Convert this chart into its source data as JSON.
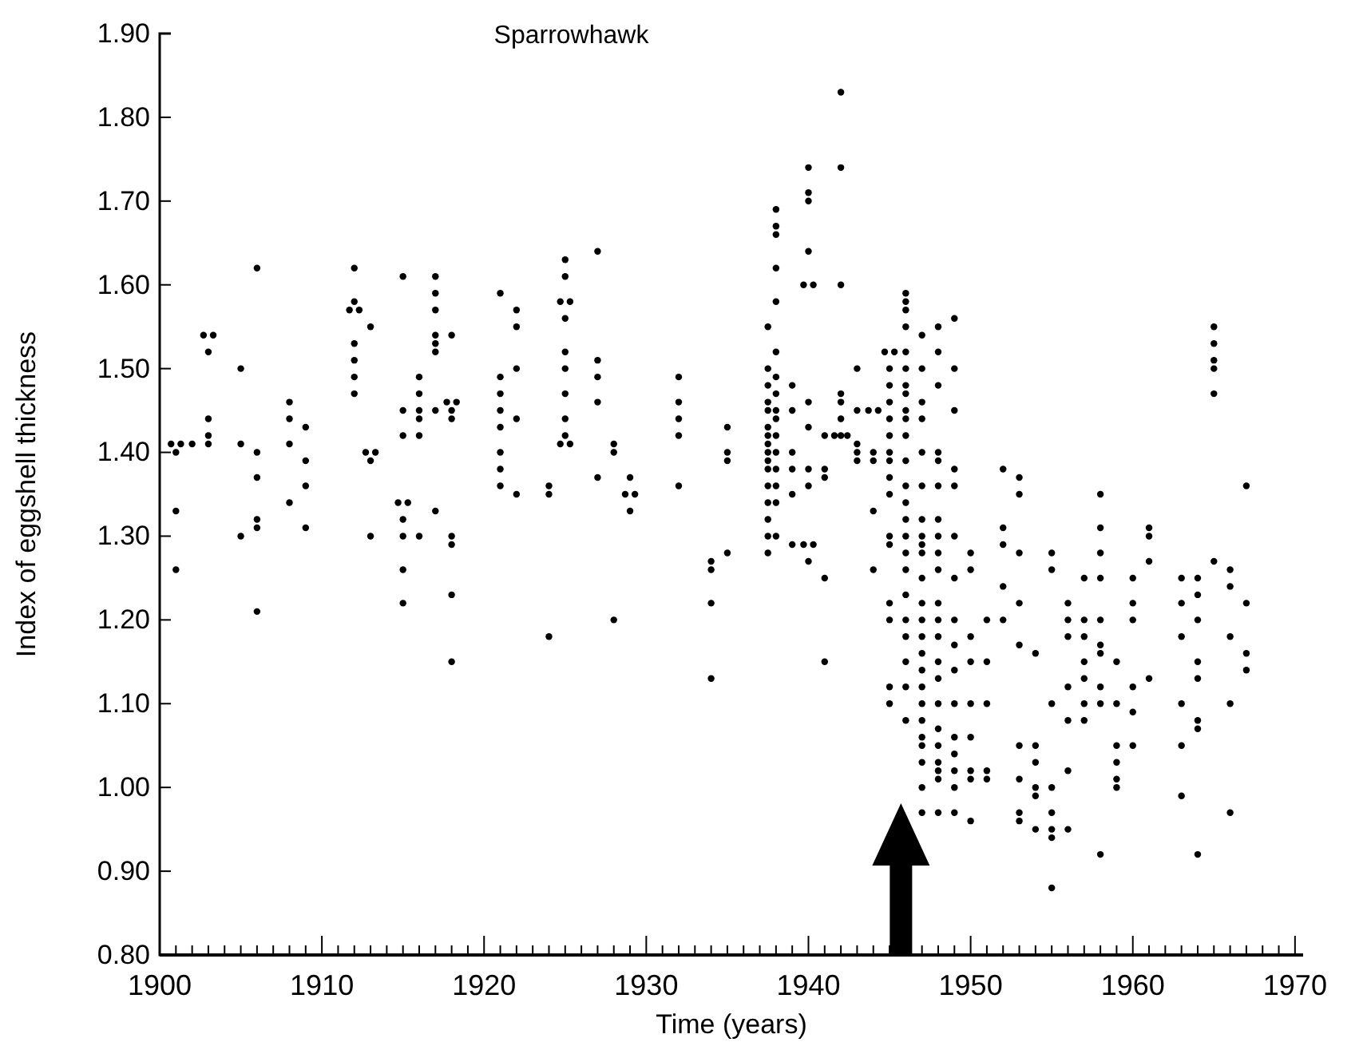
{
  "chart_data": {
    "type": "scatter",
    "title": "Sparrowhawk",
    "xlabel": "Time (years)",
    "ylabel": "Index of eggshell thickness",
    "xlim": [
      1900,
      1970.5
    ],
    "ylim": [
      0.8,
      1.9
    ],
    "xticks": [
      1900,
      {
        "value": 1901,
        "label": null
      },
      {
        "value": 1902,
        "label": null
      },
      {
        "value": 1903,
        "label": null
      },
      {
        "value": 1904,
        "label": null
      },
      {
        "value": 1905,
        "label": null
      },
      {
        "value": 1906,
        "label": null
      },
      {
        "value": 1907,
        "label": null
      },
      {
        "value": 1908,
        "label": null
      },
      {
        "value": 1909,
        "label": null
      },
      1910,
      {
        "value": 1911,
        "label": null
      },
      {
        "value": 1912,
        "label": null
      },
      {
        "value": 1913,
        "label": null
      },
      {
        "value": 1914,
        "label": null
      },
      {
        "value": 1915,
        "label": null
      },
      {
        "value": 1916,
        "label": null
      },
      {
        "value": 1917,
        "label": null
      },
      {
        "value": 1918,
        "label": null
      },
      {
        "value": 1919,
        "label": null
      },
      1920,
      {
        "value": 1921,
        "label": null
      },
      {
        "value": 1922,
        "label": null
      },
      {
        "value": 1923,
        "label": null
      },
      {
        "value": 1924,
        "label": null
      },
      {
        "value": 1925,
        "label": null
      },
      {
        "value": 1926,
        "label": null
      },
      {
        "value": 1927,
        "label": null
      },
      {
        "value": 1928,
        "label": null
      },
      {
        "value": 1929,
        "label": null
      },
      1930,
      {
        "value": 1931,
        "label": null
      },
      {
        "value": 1932,
        "label": null
      },
      {
        "value": 1933,
        "label": null
      },
      {
        "value": 1934,
        "label": null
      },
      {
        "value": 1935,
        "label": null
      },
      {
        "value": 1936,
        "label": null
      },
      {
        "value": 1937,
        "label": null
      },
      {
        "value": 1938,
        "label": null
      },
      {
        "value": 1939,
        "label": null
      },
      1940,
      {
        "value": 1941,
        "label": null
      },
      {
        "value": 1942,
        "label": null
      },
      {
        "value": 1943,
        "label": null
      },
      {
        "value": 1944,
        "label": null
      },
      {
        "value": 1945,
        "label": null
      },
      {
        "value": 1946,
        "label": null
      },
      {
        "value": 1947,
        "label": null
      },
      {
        "value": 1948,
        "label": null
      },
      {
        "value": 1949,
        "label": null
      },
      1950,
      {
        "value": 1951,
        "label": null
      },
      {
        "value": 1952,
        "label": null
      },
      {
        "value": 1953,
        "label": null
      },
      {
        "value": 1954,
        "label": null
      },
      {
        "value": 1955,
        "label": null
      },
      {
        "value": 1956,
        "label": null
      },
      {
        "value": 1957,
        "label": null
      },
      {
        "value": 1958,
        "label": null
      },
      {
        "value": 1959,
        "label": null
      },
      1960,
      {
        "value": 1961,
        "label": null
      },
      {
        "value": 1962,
        "label": null
      },
      {
        "value": 1963,
        "label": null
      },
      {
        "value": 1964,
        "label": null
      },
      {
        "value": 1965,
        "label": null
      },
      {
        "value": 1966,
        "label": null
      },
      {
        "value": 1967,
        "label": null
      },
      {
        "value": 1968,
        "label": null
      },
      {
        "value": 1969,
        "label": null
      },
      1970
    ],
    "yticks": [
      {
        "value": 0.8,
        "label": "0.80"
      },
      {
        "value": 0.9,
        "label": "0.90"
      },
      {
        "value": 1.0,
        "label": "1.00"
      },
      {
        "value": 1.1,
        "label": "1.10"
      },
      {
        "value": 1.2,
        "label": "1.20"
      },
      {
        "value": 1.3,
        "label": "1.30"
      },
      {
        "value": 1.4,
        "label": "1.40"
      },
      {
        "value": 1.5,
        "label": "1.50"
      },
      {
        "value": 1.6,
        "label": "1.60"
      },
      {
        "value": 1.7,
        "label": "1.70"
      },
      {
        "value": 1.8,
        "label": "1.80"
      },
      {
        "value": 1.9,
        "label": "1.90"
      }
    ],
    "marker": "circle",
    "grid": false,
    "series": [
      {
        "color": "#000000",
        "x": [
          1900.7,
          1901.3,
          1901,
          1901,
          1901
        ],
        "values": [
          1.41,
          1.41,
          1.33,
          1.26,
          1.4
        ]
      },
      {
        "color": "#000000",
        "x": [
          1902,
          1902.7,
          1903.3,
          1903,
          1903,
          1903,
          1903
        ],
        "values": [
          1.41,
          1.54,
          1.54,
          1.52,
          1.44,
          1.41,
          1.42
        ]
      },
      {
        "color": "#000000",
        "x": [
          1905,
          1905,
          1905
        ],
        "values": [
          1.5,
          1.41,
          1.3
        ]
      },
      {
        "color": "#000000",
        "x": [
          1906,
          1906,
          1906,
          1906,
          1906,
          1906
        ],
        "values": [
          1.62,
          1.4,
          1.37,
          1.32,
          1.31,
          1.21
        ]
      },
      {
        "color": "#000000",
        "x": [
          1908,
          1908,
          1908,
          1908
        ],
        "values": [
          1.46,
          1.44,
          1.41,
          1.34
        ]
      },
      {
        "color": "#000000",
        "x": [
          1909,
          1909,
          1909,
          1909
        ],
        "values": [
          1.43,
          1.39,
          1.36,
          1.31
        ]
      },
      {
        "color": "#000000",
        "x": [
          1911.7,
          1912.3,
          1912,
          1912,
          1912,
          1912,
          1912,
          1912
        ],
        "values": [
          1.57,
          1.57,
          1.62,
          1.58,
          1.53,
          1.51,
          1.49,
          1.47
        ]
      },
      {
        "color": "#000000",
        "x": [
          1913,
          1912.7,
          1913.3,
          1913,
          1913
        ],
        "values": [
          1.55,
          1.4,
          1.4,
          1.39,
          1.3
        ]
      },
      {
        "color": "#000000",
        "x": [
          1915,
          1915,
          1915,
          1914.7,
          1915.3,
          1915,
          1915,
          1915,
          1915
        ],
        "values": [
          1.61,
          1.42,
          1.45,
          1.34,
          1.34,
          1.32,
          1.3,
          1.26,
          1.22
        ]
      },
      {
        "color": "#000000",
        "x": [
          1916,
          1916,
          1916,
          1916,
          1916,
          1916
        ],
        "values": [
          1.42,
          1.45,
          1.47,
          1.49,
          1.44,
          1.3
        ]
      },
      {
        "color": "#000000",
        "x": [
          1917,
          1917,
          1917,
          1917,
          1917,
          1917,
          1917,
          1917
        ],
        "values": [
          1.61,
          1.59,
          1.57,
          1.54,
          1.52,
          1.53,
          1.45,
          1.33
        ]
      },
      {
        "color": "#000000",
        "x": [
          1918,
          1917.7,
          1918.3,
          1918,
          1918,
          1918,
          1918,
          1918,
          1918
        ],
        "values": [
          1.54,
          1.46,
          1.46,
          1.44,
          1.45,
          1.3,
          1.29,
          1.23,
          1.15
        ]
      },
      {
        "color": "#000000",
        "x": [
          1921,
          1921,
          1921,
          1921,
          1921,
          1921,
          1921,
          1921
        ],
        "values": [
          1.59,
          1.49,
          1.47,
          1.45,
          1.43,
          1.4,
          1.38,
          1.36
        ]
      },
      {
        "color": "#000000",
        "x": [
          1922,
          1922,
          1922,
          1922,
          1922
        ],
        "values": [
          1.57,
          1.55,
          1.5,
          1.44,
          1.35
        ]
      },
      {
        "color": "#000000",
        "x": [
          1924,
          1924,
          1924
        ],
        "values": [
          1.36,
          1.35,
          1.18
        ]
      },
      {
        "color": "#000000",
        "x": [
          1925,
          1925,
          1924.7,
          1925.3,
          1925,
          1925,
          1925,
          1925,
          1925,
          1925,
          1924.7,
          1925.3
        ],
        "values": [
          1.63,
          1.61,
          1.58,
          1.58,
          1.56,
          1.52,
          1.5,
          1.47,
          1.44,
          1.42,
          1.41,
          1.41
        ]
      },
      {
        "color": "#000000",
        "x": [
          1927,
          1927,
          1927,
          1927,
          1927
        ],
        "values": [
          1.64,
          1.51,
          1.49,
          1.46,
          1.37
        ]
      },
      {
        "color": "#000000",
        "x": [
          1928,
          1928,
          1928
        ],
        "values": [
          1.41,
          1.4,
          1.2
        ]
      },
      {
        "color": "#000000",
        "x": [
          1929,
          1928.7,
          1929.3,
          1929
        ],
        "values": [
          1.37,
          1.35,
          1.35,
          1.33
        ]
      },
      {
        "color": "#000000",
        "x": [
          1932,
          1932,
          1932,
          1932,
          1932
        ],
        "values": [
          1.49,
          1.46,
          1.44,
          1.42,
          1.36
        ]
      },
      {
        "color": "#000000",
        "x": [
          1934,
          1934,
          1934,
          1934
        ],
        "values": [
          1.27,
          1.26,
          1.22,
          1.13
        ]
      },
      {
        "color": "#000000",
        "x": [
          1935,
          1935,
          1935,
          1935
        ],
        "values": [
          1.43,
          1.4,
          1.39,
          1.28
        ]
      },
      {
        "color": "#000000",
        "x": [
          1937.5,
          1937.5,
          1937.5,
          1937.5,
          1937.5,
          1937.5,
          1937.5,
          1937.5,
          1937.5,
          1937.5,
          1937.5,
          1937.5,
          1937.5,
          1937.5,
          1937.5,
          1937.5
        ],
        "values": [
          1.55,
          1.5,
          1.48,
          1.46,
          1.45,
          1.43,
          1.42,
          1.41,
          1.4,
          1.39,
          1.38,
          1.36,
          1.34,
          1.32,
          1.3,
          1.28
        ]
      },
      {
        "color": "#000000",
        "x": [
          1938,
          1938,
          1938,
          1938,
          1938,
          1938,
          1938,
          1938,
          1938,
          1938,
          1938,
          1938,
          1938,
          1938,
          1938,
          1938
        ],
        "values": [
          1.69,
          1.67,
          1.66,
          1.62,
          1.58,
          1.52,
          1.49,
          1.47,
          1.45,
          1.44,
          1.42,
          1.4,
          1.38,
          1.36,
          1.34,
          1.3
        ]
      },
      {
        "color": "#000000",
        "x": [
          1939,
          1939,
          1939,
          1939,
          1939,
          1939
        ],
        "values": [
          1.48,
          1.45,
          1.4,
          1.38,
          1.35,
          1.29
        ]
      },
      {
        "color": "#000000",
        "x": [
          1940,
          1940,
          1940,
          1940,
          1939.7,
          1940.3,
          1940,
          1940,
          1940,
          1940,
          1939.7,
          1940.3,
          1940
        ],
        "values": [
          1.74,
          1.71,
          1.7,
          1.64,
          1.6,
          1.6,
          1.46,
          1.43,
          1.38,
          1.36,
          1.29,
          1.29,
          1.27
        ]
      },
      {
        "color": "#000000",
        "x": [
          1941,
          1941,
          1941,
          1941,
          1941
        ],
        "values": [
          1.42,
          1.38,
          1.37,
          1.25,
          1.15
        ]
      },
      {
        "color": "#000000",
        "x": [
          1942,
          1942,
          1942,
          1942,
          1942,
          1942,
          1941.6,
          1942,
          1942.4
        ],
        "values": [
          1.83,
          1.74,
          1.6,
          1.47,
          1.46,
          1.44,
          1.42,
          1.42,
          1.42
        ]
      },
      {
        "color": "#000000",
        "x": [
          1943,
          1943,
          1943,
          1943,
          1943
        ],
        "values": [
          1.5,
          1.45,
          1.41,
          1.4,
          1.39
        ]
      },
      {
        "color": "#000000",
        "x": [
          1943.7,
          1944.3,
          1944,
          1944,
          1944,
          1944
        ],
        "values": [
          1.45,
          1.45,
          1.4,
          1.39,
          1.33,
          1.26
        ]
      },
      {
        "color": "#000000",
        "x": [
          1944.7,
          1945.3,
          1945,
          1945,
          1945,
          1945,
          1945,
          1945,
          1945,
          1945,
          1945,
          1945,
          1945,
          1945,
          1945,
          1945,
          1945
        ],
        "values": [
          1.52,
          1.52,
          1.5,
          1.48,
          1.46,
          1.44,
          1.42,
          1.4,
          1.39,
          1.37,
          1.35,
          1.3,
          1.29,
          1.22,
          1.2,
          1.12,
          1.1
        ]
      },
      {
        "color": "#000000",
        "x": [
          1946,
          1946,
          1946,
          1946,
          1946,
          1946,
          1946,
          1946,
          1946,
          1946,
          1946,
          1946,
          1946,
          1946,
          1946,
          1946,
          1946,
          1946,
          1946,
          1946,
          1946,
          1946,
          1946,
          1946
        ],
        "values": [
          1.59,
          1.58,
          1.57,
          1.55,
          1.52,
          1.5,
          1.48,
          1.47,
          1.45,
          1.44,
          1.42,
          1.39,
          1.36,
          1.34,
          1.32,
          1.3,
          1.28,
          1.26,
          1.23,
          1.2,
          1.18,
          1.15,
          1.12,
          1.08
        ]
      },
      {
        "color": "#000000",
        "x": [
          1947,
          1947,
          1947,
          1947,
          1947,
          1947,
          1947,
          1947,
          1947,
          1947,
          1947,
          1947,
          1947,
          1947,
          1947,
          1947,
          1947,
          1947,
          1947,
          1947,
          1947,
          1947,
          1947,
          1947
        ],
        "values": [
          1.54,
          1.5,
          1.46,
          1.44,
          1.4,
          1.36,
          1.32,
          1.3,
          1.29,
          1.28,
          1.25,
          1.22,
          1.2,
          1.18,
          1.16,
          1.14,
          1.12,
          1.1,
          1.08,
          1.06,
          1.05,
          1.03,
          1.0,
          0.97
        ]
      },
      {
        "color": "#000000",
        "x": [
          1948,
          1948,
          1948,
          1948,
          1948,
          1948,
          1948,
          1948,
          1948,
          1948,
          1948,
          1948,
          1948,
          1948,
          1948,
          1948,
          1948,
          1948,
          1948,
          1948,
          1948,
          1948
        ],
        "values": [
          1.55,
          1.52,
          1.48,
          1.4,
          1.39,
          1.36,
          1.32,
          1.3,
          1.28,
          1.26,
          1.22,
          1.2,
          1.18,
          1.15,
          1.13,
          1.1,
          1.07,
          1.05,
          1.03,
          1.02,
          1.01,
          0.97
        ]
      },
      {
        "color": "#000000",
        "x": [
          1949,
          1949,
          1949,
          1949,
          1949,
          1949,
          1949,
          1949,
          1949,
          1949,
          1949,
          1949,
          1949,
          1949,
          1949,
          1949
        ],
        "values": [
          1.56,
          1.5,
          1.45,
          1.38,
          1.36,
          1.3,
          1.25,
          1.2,
          1.17,
          1.14,
          1.1,
          1.06,
          1.04,
          1.02,
          1.0,
          0.97
        ]
      },
      {
        "color": "#000000",
        "x": [
          1950,
          1950,
          1950,
          1950,
          1950,
          1950,
          1950,
          1950,
          1950
        ],
        "values": [
          1.28,
          1.26,
          1.18,
          1.15,
          1.1,
          1.06,
          1.02,
          1.01,
          0.96
        ]
      },
      {
        "color": "#000000",
        "x": [
          1951,
          1951,
          1951,
          1951,
          1951
        ],
        "values": [
          1.2,
          1.15,
          1.1,
          1.02,
          1.01
        ]
      },
      {
        "color": "#000000",
        "x": [
          1952,
          1952,
          1952,
          1952,
          1952
        ],
        "values": [
          1.38,
          1.31,
          1.29,
          1.24,
          1.2
        ]
      },
      {
        "color": "#000000",
        "x": [
          1953,
          1953,
          1953,
          1953,
          1953,
          1953,
          1953,
          1953,
          1953
        ],
        "values": [
          1.37,
          1.35,
          1.28,
          1.22,
          1.17,
          1.05,
          1.01,
          0.97,
          0.96
        ]
      },
      {
        "color": "#000000",
        "x": [
          1954,
          1954,
          1954,
          1954,
          1954,
          1954
        ],
        "values": [
          1.16,
          1.05,
          1.03,
          1.0,
          0.99,
          0.95
        ]
      },
      {
        "color": "#000000",
        "x": [
          1955,
          1955,
          1955,
          1955,
          1955,
          1955,
          1955,
          1955
        ],
        "values": [
          1.28,
          1.26,
          1.1,
          1.0,
          0.97,
          0.95,
          0.94,
          0.88
        ]
      },
      {
        "color": "#000000",
        "x": [
          1956,
          1956,
          1956,
          1956,
          1956,
          1956,
          1956
        ],
        "values": [
          1.22,
          1.2,
          1.18,
          1.12,
          1.08,
          1.02,
          0.95
        ]
      },
      {
        "color": "#000000",
        "x": [
          1957,
          1957,
          1957,
          1957,
          1957,
          1957,
          1957
        ],
        "values": [
          1.25,
          1.2,
          1.18,
          1.15,
          1.13,
          1.1,
          1.08
        ]
      },
      {
        "color": "#000000",
        "x": [
          1958,
          1958,
          1958,
          1958,
          1958,
          1958,
          1958,
          1958,
          1958,
          1958
        ],
        "values": [
          1.35,
          1.31,
          1.28,
          1.25,
          1.2,
          1.17,
          1.16,
          1.12,
          1.1,
          0.92
        ]
      },
      {
        "color": "#000000",
        "x": [
          1959,
          1959,
          1959,
          1959,
          1959,
          1959
        ],
        "values": [
          1.15,
          1.1,
          1.05,
          1.03,
          1.01,
          1.0
        ]
      },
      {
        "color": "#000000",
        "x": [
          1960,
          1960,
          1960,
          1960,
          1960,
          1960
        ],
        "values": [
          1.25,
          1.22,
          1.2,
          1.12,
          1.09,
          1.05
        ]
      },
      {
        "color": "#000000",
        "x": [
          1961,
          1961,
          1961,
          1961
        ],
        "values": [
          1.31,
          1.3,
          1.27,
          1.13
        ]
      },
      {
        "color": "#000000",
        "x": [
          1963,
          1963,
          1963,
          1963,
          1963,
          1963
        ],
        "values": [
          1.25,
          1.22,
          1.18,
          1.1,
          1.05,
          0.99
        ]
      },
      {
        "color": "#000000",
        "x": [
          1964,
          1964,
          1964,
          1964,
          1964,
          1964,
          1964,
          1964
        ],
        "values": [
          1.25,
          1.23,
          1.2,
          1.15,
          1.13,
          1.08,
          1.07,
          0.92
        ]
      },
      {
        "color": "#000000",
        "x": [
          1965,
          1965,
          1965,
          1965,
          1965,
          1965
        ],
        "values": [
          1.55,
          1.53,
          1.51,
          1.5,
          1.47,
          1.27
        ]
      },
      {
        "color": "#000000",
        "x": [
          1966,
          1966,
          1966,
          1966,
          1966
        ],
        "values": [
          1.26,
          1.24,
          1.18,
          1.1,
          0.97
        ]
      },
      {
        "color": "#000000",
        "x": [
          1967,
          1967,
          1967,
          1967
        ],
        "values": [
          1.36,
          1.22,
          1.16,
          1.14
        ]
      }
    ]
  }
}
